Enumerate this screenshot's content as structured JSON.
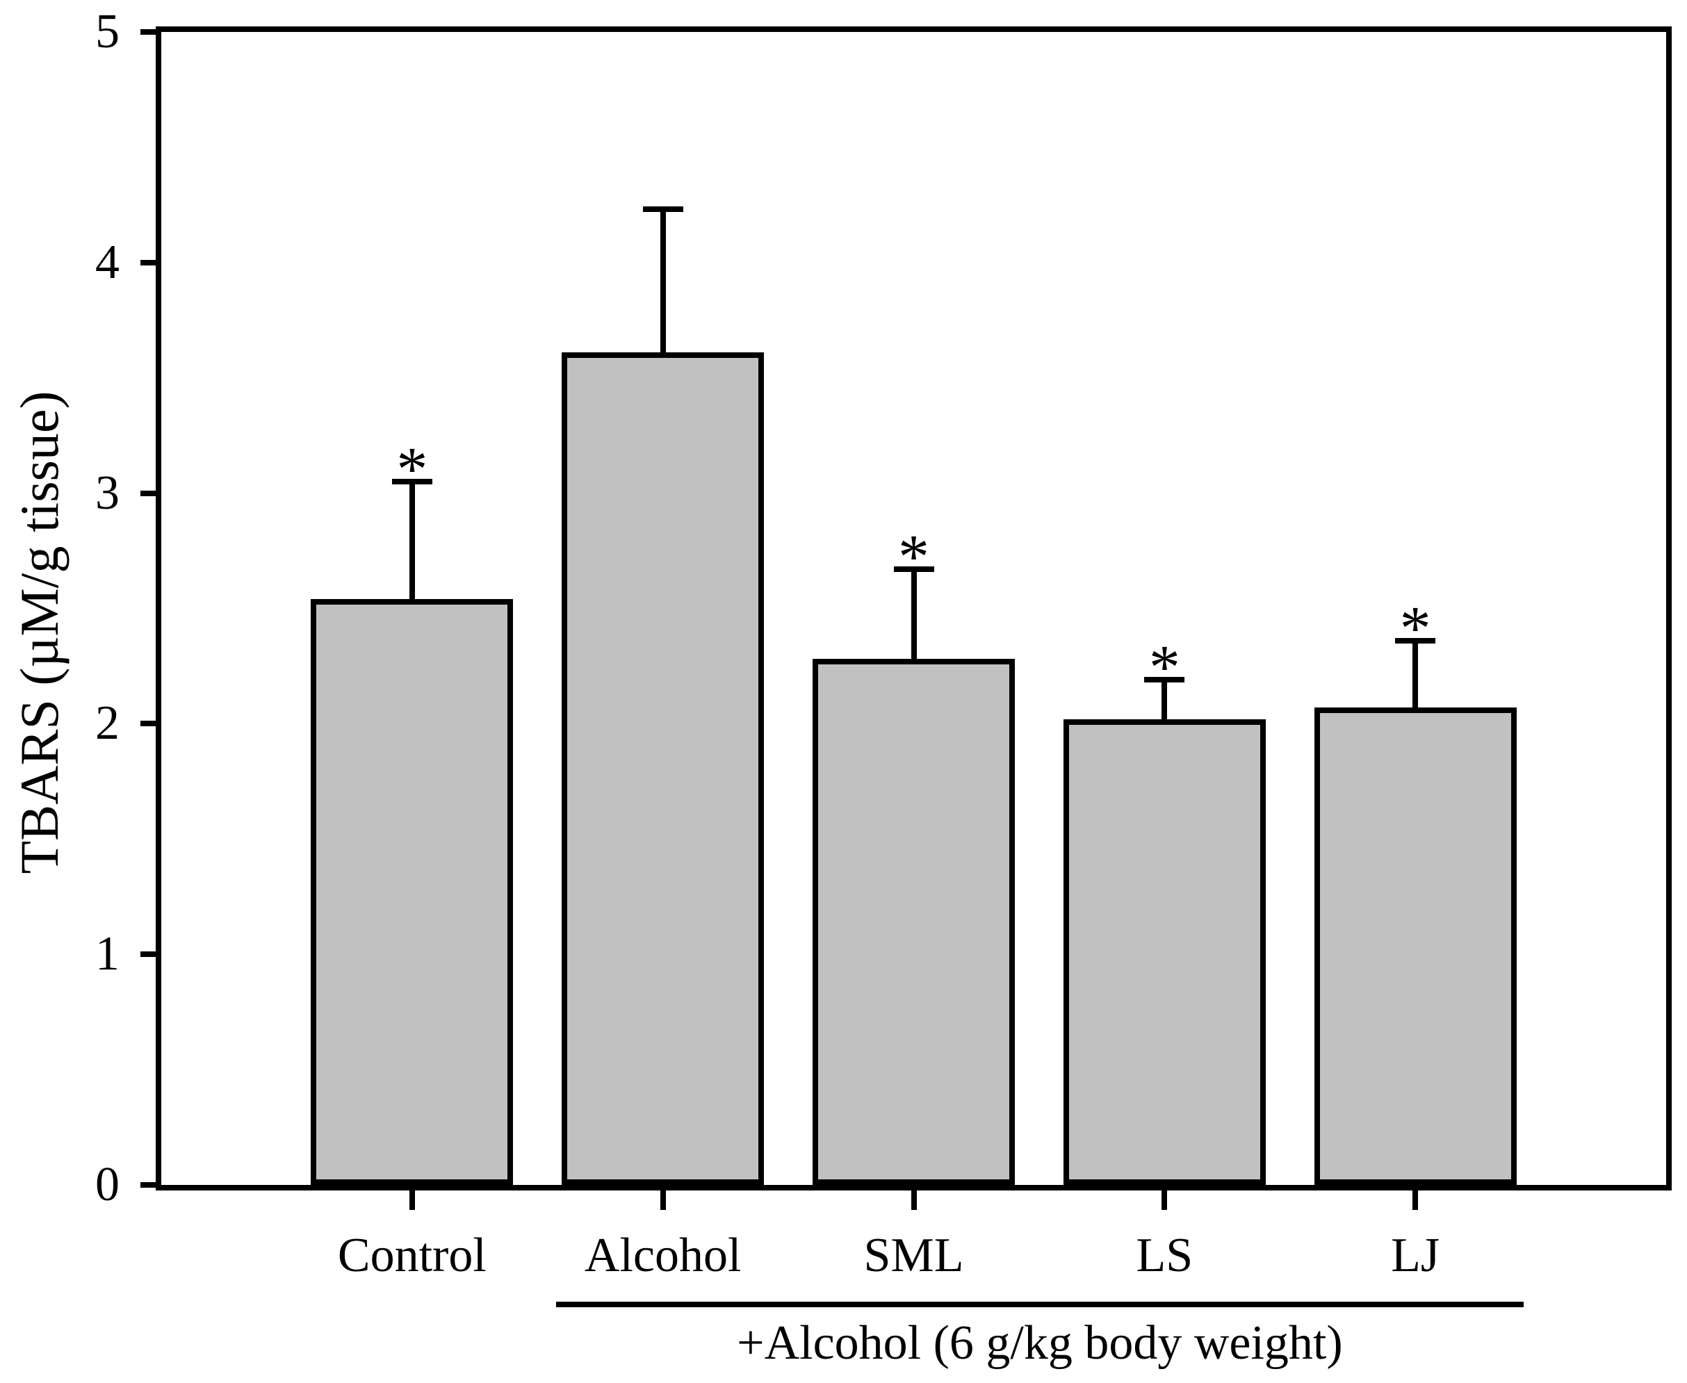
{
  "chart_data": {
    "type": "bar",
    "title": "",
    "xlabel": "",
    "ylabel": "TBARS (µM/g tissue)",
    "ylim": [
      0,
      5
    ],
    "yticks": [
      0,
      1,
      2,
      3,
      4,
      5
    ],
    "categories": [
      "Control",
      "Alcohol",
      "SML",
      "LS",
      "LJ"
    ],
    "values": [
      2.54,
      3.61,
      2.28,
      2.02,
      2.07
    ],
    "errors": [
      0.51,
      0.62,
      0.39,
      0.17,
      0.29
    ],
    "significance": [
      "*",
      "",
      "*",
      "*",
      "*"
    ],
    "group_annotation": {
      "label": "+Alcohol (6 g/kg body weight)",
      "applies_to": [
        "Alcohol",
        "SML",
        "LS",
        "LJ"
      ]
    },
    "bar_fill_color": "#c1c1c1",
    "axis_color": "#000000",
    "grid": false,
    "legend": false
  }
}
